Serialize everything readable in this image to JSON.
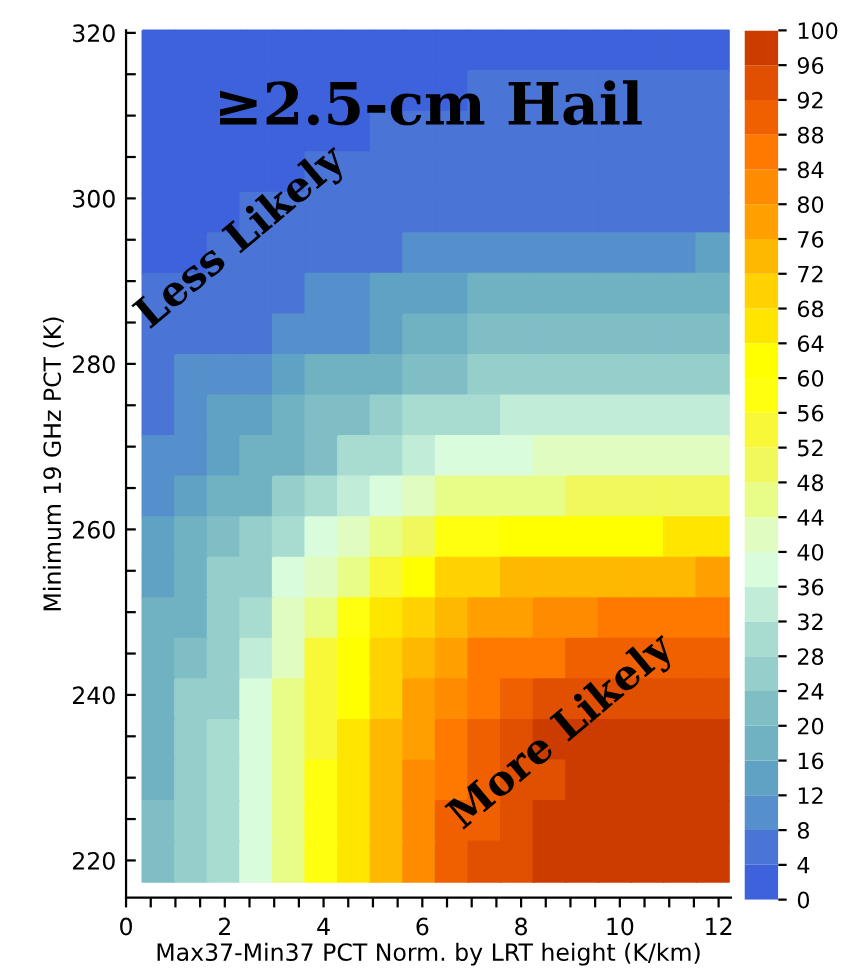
{
  "chart_data": {
    "type": "heatmap",
    "title": "≥2.5-cm Hail",
    "xlabel": "Max37-Min37 PCT Norm. by LRT height (K/km)",
    "ylabel": "Minimum 19 GHz PCT (K)",
    "annotations": [
      "Less Likely",
      "More Likely"
    ],
    "x": [
      0.66,
      1.32,
      1.98,
      2.64,
      3.3,
      3.96,
      4.62,
      5.28,
      5.94,
      6.6,
      7.26,
      7.92,
      8.58,
      9.24,
      9.9,
      10.56,
      11.22,
      11.88
    ],
    "y": [
      317.85,
      312.95,
      308.05,
      303.15,
      298.25,
      293.35,
      288.45,
      283.55,
      278.65,
      273.75,
      268.85,
      263.95,
      259.05,
      254.15,
      249.25,
      244.35,
      239.45,
      234.55,
      229.65,
      224.75,
      219.85
    ],
    "cells": [
      [
        2,
        2,
        2,
        2,
        2,
        2,
        2,
        2,
        2,
        2,
        2,
        2,
        2,
        2,
        2,
        2,
        2,
        2
      ],
      [
        2,
        2,
        2,
        2,
        2,
        2,
        2,
        2,
        2,
        2,
        6,
        6,
        6,
        6,
        6,
        6,
        6,
        6
      ],
      [
        2,
        2,
        2,
        2,
        2,
        2,
        2,
        6,
        6,
        6,
        6,
        6,
        6,
        6,
        6,
        6,
        6,
        6
      ],
      [
        2,
        2,
        2,
        2,
        2,
        6,
        6,
        6,
        6,
        6,
        6,
        6,
        6,
        6,
        6,
        6,
        6,
        6
      ],
      [
        2,
        2,
        2,
        6,
        6,
        6,
        6,
        6,
        6,
        6,
        6,
        6,
        6,
        6,
        6,
        6,
        6,
        6
      ],
      [
        2,
        2,
        6,
        6,
        6,
        6,
        6,
        6,
        10,
        10,
        10,
        10,
        10,
        10,
        10,
        10,
        10,
        14
      ],
      [
        6,
        6,
        6,
        6,
        6,
        10,
        10,
        14,
        14,
        14,
        18,
        18,
        18,
        18,
        18,
        18,
        18,
        18
      ],
      [
        6,
        6,
        6,
        6,
        10,
        10,
        10,
        14,
        18,
        18,
        22,
        22,
        22,
        22,
        22,
        22,
        22,
        22
      ],
      [
        6,
        10,
        10,
        10,
        14,
        18,
        18,
        18,
        22,
        22,
        26,
        26,
        26,
        26,
        26,
        26,
        26,
        26
      ],
      [
        6,
        10,
        14,
        14,
        18,
        22,
        22,
        26,
        30,
        30,
        30,
        34,
        34,
        34,
        34,
        34,
        34,
        34
      ],
      [
        10,
        10,
        14,
        18,
        18,
        22,
        30,
        30,
        34,
        38,
        38,
        38,
        42,
        42,
        42,
        42,
        42,
        42
      ],
      [
        10,
        14,
        18,
        18,
        26,
        30,
        34,
        38,
        42,
        46,
        46,
        46,
        46,
        50,
        50,
        50,
        50,
        50
      ],
      [
        14,
        18,
        22,
        26,
        30,
        38,
        42,
        46,
        50,
        58,
        58,
        62,
        62,
        62,
        62,
        62,
        66,
        66
      ],
      [
        14,
        18,
        26,
        26,
        38,
        42,
        46,
        54,
        62,
        70,
        70,
        74,
        74,
        74,
        74,
        74,
        74,
        78
      ],
      [
        18,
        18,
        26,
        30,
        42,
        46,
        58,
        66,
        70,
        74,
        78,
        78,
        82,
        82,
        86,
        86,
        86,
        86
      ],
      [
        18,
        22,
        26,
        34,
        42,
        54,
        62,
        70,
        74,
        78,
        86,
        86,
        86,
        90,
        90,
        90,
        90,
        90
      ],
      [
        18,
        26,
        26,
        38,
        46,
        54,
        62,
        70,
        78,
        82,
        86,
        90,
        94,
        94,
        94,
        94,
        94,
        94
      ],
      [
        18,
        26,
        30,
        38,
        46,
        54,
        66,
        74,
        78,
        86,
        90,
        94,
        98,
        98,
        98,
        98,
        98,
        98
      ],
      [
        18,
        26,
        30,
        38,
        46,
        58,
        66,
        74,
        82,
        86,
        90,
        94,
        94,
        98,
        98,
        98,
        98,
        98
      ],
      [
        22,
        26,
        30,
        38,
        46,
        58,
        66,
        74,
        82,
        90,
        90,
        94,
        98,
        98,
        98,
        98,
        98,
        98
      ],
      [
        22,
        26,
        30,
        38,
        46,
        58,
        66,
        74,
        82,
        90,
        94,
        94,
        98,
        98,
        98,
        98,
        98,
        98
      ]
    ],
    "colors": [
      "#3d62db",
      "#4a74d6",
      "#5590cc",
      "#60a2c4",
      "#70b2c2",
      "#80bec6",
      "#96cecc",
      "#a8dcd0",
      "#c0ecd8",
      "#d8fcdc",
      "#e0fcc0",
      "#e8fc88",
      "#f0f85c",
      "#f8f838",
      "#ffff10",
      "#ffff00",
      "#ffe600",
      "#ffd200",
      "#ffb800",
      "#ffa000",
      "#ff8c00",
      "#ff7800",
      "#f06000",
      "#e05000",
      "#cc3c00"
    ],
    "clim": [
      0,
      100
    ],
    "cticks": [
      0,
      4,
      8,
      12,
      16,
      20,
      24,
      28,
      32,
      36,
      40,
      44,
      48,
      52,
      56,
      60,
      64,
      68,
      72,
      76,
      80,
      84,
      88,
      92,
      96,
      100
    ],
    "xlim": [
      0,
      12.25
    ],
    "ylim": [
      215.5,
      320.3
    ],
    "xticks": [
      0,
      {
        "value": 0.5,
        "label": null
      },
      {
        "value": 1,
        "label": null
      },
      {
        "value": 1.5,
        "label": null
      },
      2,
      {
        "value": 2.5,
        "label": null
      },
      {
        "value": 3,
        "label": null
      },
      {
        "value": 3.5,
        "label": null
      },
      4,
      {
        "value": 4.5,
        "label": null
      },
      {
        "value": 5,
        "label": null
      },
      {
        "value": 5.5,
        "label": null
      },
      6,
      {
        "value": 6.5,
        "label": null
      },
      {
        "value": 7,
        "label": null
      },
      {
        "value": 7.5,
        "label": null
      },
      8,
      {
        "value": 8.5,
        "label": null
      },
      {
        "value": 9,
        "label": null
      },
      {
        "value": 9.5,
        "label": null
      },
      10,
      {
        "value": 10.5,
        "label": null
      },
      {
        "value": 11,
        "label": null
      },
      {
        "value": 11.5,
        "label": null
      },
      12
    ],
    "yticks": [
      220,
      {
        "value": 225,
        "label": null
      },
      {
        "value": 230,
        "label": null
      },
      {
        "value": 235,
        "label": null
      },
      240,
      {
        "value": 245,
        "label": null
      },
      {
        "value": 250,
        "label": null
      },
      {
        "value": 255,
        "label": null
      },
      260,
      {
        "value": 265,
        "label": null
      },
      {
        "value": 270,
        "label": null
      },
      {
        "value": 275,
        "label": null
      },
      280,
      {
        "value": 285,
        "label": null
      },
      {
        "value": 290,
        "label": null
      },
      {
        "value": 295,
        "label": null
      },
      300,
      {
        "value": 305,
        "label": null
      },
      {
        "value": 310,
        "label": null
      },
      {
        "value": 315,
        "label": null
      },
      320
    ]
  }
}
